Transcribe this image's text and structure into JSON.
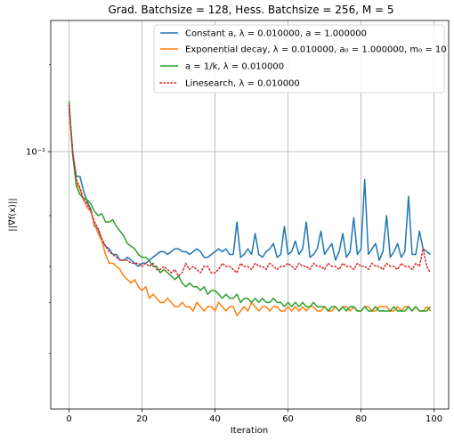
{
  "chart_data": {
    "type": "line",
    "title": "Grad. Batchsize = 128, Hess. Batchsize = 256, M = 5",
    "xlabel": "Iteration",
    "ylabel": "||∇f(x)||",
    "x_scale": "linear",
    "y_scale": "log",
    "xlim": [
      -5,
      104
    ],
    "ylim": [
      0.0128,
      0.285
    ],
    "x_ticks": [
      0,
      20,
      40,
      60,
      80,
      100
    ],
    "x_tick_labels": [
      "0",
      "20",
      "40",
      "60",
      "80",
      "100"
    ],
    "y_major_ticks": [
      0.1
    ],
    "y_major_tick_labels": [
      "10⁻¹"
    ],
    "y_minor_ticks": [
      0.02,
      0.03,
      0.04,
      0.06,
      0.2
    ],
    "grid": true,
    "legend_position": "upper right",
    "x": [
      0,
      1,
      2,
      3,
      4,
      5,
      6,
      7,
      8,
      9,
      10,
      11,
      12,
      13,
      14,
      15,
      16,
      17,
      18,
      19,
      20,
      21,
      22,
      23,
      24,
      25,
      26,
      27,
      28,
      29,
      30,
      31,
      32,
      33,
      34,
      35,
      36,
      37,
      38,
      39,
      40,
      41,
      42,
      43,
      44,
      45,
      46,
      47,
      48,
      49,
      50,
      51,
      52,
      53,
      54,
      55,
      56,
      57,
      58,
      59,
      60,
      61,
      62,
      63,
      64,
      65,
      66,
      67,
      68,
      69,
      70,
      71,
      72,
      73,
      74,
      75,
      76,
      77,
      78,
      79,
      80,
      81,
      82,
      83,
      84,
      85,
      86,
      87,
      88,
      89,
      90,
      91,
      92,
      93,
      94,
      95,
      96,
      97,
      98,
      99
    ],
    "series": [
      {
        "name": "Constant a, λ = 0.010000, a = 1.000000",
        "color": "#1f77b4",
        "style": "solid",
        "values": [
          0.145,
          0.1,
          0.082,
          0.082,
          0.073,
          0.067,
          0.063,
          0.055,
          0.054,
          0.049,
          0.047,
          0.046,
          0.044,
          0.044,
          0.042,
          0.042,
          0.043,
          0.042,
          0.041,
          0.04,
          0.041,
          0.041,
          0.042,
          0.043,
          0.044,
          0.045,
          0.045,
          0.044,
          0.045,
          0.046,
          0.046,
          0.045,
          0.045,
          0.044,
          0.045,
          0.046,
          0.045,
          0.043,
          0.043,
          0.044,
          0.045,
          0.046,
          0.045,
          0.046,
          0.044,
          0.044,
          0.057,
          0.043,
          0.044,
          0.046,
          0.044,
          0.052,
          0.044,
          0.043,
          0.045,
          0.046,
          0.048,
          0.043,
          0.044,
          0.055,
          0.044,
          0.045,
          0.049,
          0.044,
          0.046,
          0.057,
          0.043,
          0.044,
          0.046,
          0.053,
          0.044,
          0.046,
          0.048,
          0.042,
          0.045,
          0.052,
          0.043,
          0.045,
          0.059,
          0.044,
          0.046,
          0.08,
          0.044,
          0.046,
          0.048,
          0.042,
          0.045,
          0.06,
          0.043,
          0.045,
          0.048,
          0.043,
          0.045,
          0.07,
          0.044,
          0.044,
          0.053,
          0.046,
          0.045,
          0.044
        ]
      },
      {
        "name": "Exponential decay, λ = 0.010000, a₀ = 1.000000, m₀ = 10",
        "color": "#ff7f0e",
        "style": "solid",
        "values": [
          0.145,
          0.098,
          0.078,
          0.074,
          0.068,
          0.064,
          0.062,
          0.056,
          0.052,
          0.049,
          0.044,
          0.041,
          0.041,
          0.04,
          0.039,
          0.037,
          0.036,
          0.035,
          0.036,
          0.034,
          0.033,
          0.034,
          0.031,
          0.032,
          0.031,
          0.03,
          0.03,
          0.031,
          0.03,
          0.029,
          0.029,
          0.03,
          0.029,
          0.029,
          0.028,
          0.03,
          0.029,
          0.028,
          0.029,
          0.029,
          0.028,
          0.03,
          0.029,
          0.028,
          0.029,
          0.029,
          0.027,
          0.028,
          0.029,
          0.028,
          0.03,
          0.029,
          0.028,
          0.029,
          0.029,
          0.028,
          0.029,
          0.029,
          0.028,
          0.028,
          0.029,
          0.028,
          0.029,
          0.028,
          0.029,
          0.028,
          0.029,
          0.029,
          0.028,
          0.028,
          0.029,
          0.028,
          0.028,
          0.029,
          0.028,
          0.029,
          0.029,
          0.028,
          0.029,
          0.028,
          0.028,
          0.029,
          0.029,
          0.028,
          0.028,
          0.029,
          0.029,
          0.029,
          0.028,
          0.028,
          0.029,
          0.028,
          0.029,
          0.029,
          0.028,
          0.029,
          0.028,
          0.028,
          0.029,
          0.028
        ]
      },
      {
        "name": "a = 1/k, λ = 0.010000",
        "color": "#2ca02c",
        "style": "solid",
        "values": [
          0.15,
          0.098,
          0.076,
          0.071,
          0.069,
          0.068,
          0.066,
          0.062,
          0.06,
          0.061,
          0.057,
          0.057,
          0.058,
          0.055,
          0.053,
          0.051,
          0.048,
          0.047,
          0.046,
          0.044,
          0.043,
          0.043,
          0.042,
          0.04,
          0.04,
          0.038,
          0.039,
          0.038,
          0.037,
          0.036,
          0.037,
          0.035,
          0.034,
          0.035,
          0.034,
          0.034,
          0.033,
          0.034,
          0.032,
          0.033,
          0.033,
          0.032,
          0.031,
          0.032,
          0.031,
          0.031,
          0.032,
          0.03,
          0.031,
          0.031,
          0.03,
          0.031,
          0.03,
          0.031,
          0.03,
          0.03,
          0.031,
          0.03,
          0.03,
          0.029,
          0.03,
          0.029,
          0.03,
          0.029,
          0.03,
          0.029,
          0.029,
          0.03,
          0.029,
          0.029,
          0.029,
          0.028,
          0.029,
          0.029,
          0.028,
          0.029,
          0.028,
          0.029,
          0.029,
          0.028,
          0.028,
          0.029,
          0.028,
          0.028,
          0.029,
          0.028,
          0.028,
          0.028,
          0.028,
          0.029,
          0.028,
          0.028,
          0.028,
          0.029,
          0.028,
          0.029,
          0.028,
          0.028,
          0.028,
          0.029
        ]
      },
      {
        "name": "Linesearch, λ = 0.010000",
        "color": "#d62728",
        "style": "dotted",
        "values": [
          0.145,
          0.1,
          0.08,
          0.075,
          0.068,
          0.066,
          0.062,
          0.057,
          0.054,
          0.05,
          0.047,
          0.045,
          0.044,
          0.043,
          0.042,
          0.042,
          0.042,
          0.041,
          0.041,
          0.041,
          0.04,
          0.041,
          0.04,
          0.041,
          0.039,
          0.039,
          0.04,
          0.039,
          0.038,
          0.039,
          0.037,
          0.038,
          0.041,
          0.039,
          0.04,
          0.039,
          0.038,
          0.04,
          0.04,
          0.038,
          0.038,
          0.039,
          0.041,
          0.04,
          0.04,
          0.039,
          0.038,
          0.041,
          0.04,
          0.04,
          0.039,
          0.041,
          0.04,
          0.04,
          0.039,
          0.041,
          0.04,
          0.039,
          0.04,
          0.04,
          0.041,
          0.04,
          0.039,
          0.041,
          0.04,
          0.04,
          0.039,
          0.041,
          0.04,
          0.04,
          0.039,
          0.041,
          0.04,
          0.04,
          0.039,
          0.041,
          0.04,
          0.04,
          0.039,
          0.041,
          0.04,
          0.04,
          0.039,
          0.041,
          0.04,
          0.04,
          0.039,
          0.041,
          0.04,
          0.04,
          0.039,
          0.041,
          0.04,
          0.04,
          0.039,
          0.041,
          0.04,
          0.046,
          0.04,
          0.038
        ]
      }
    ]
  }
}
